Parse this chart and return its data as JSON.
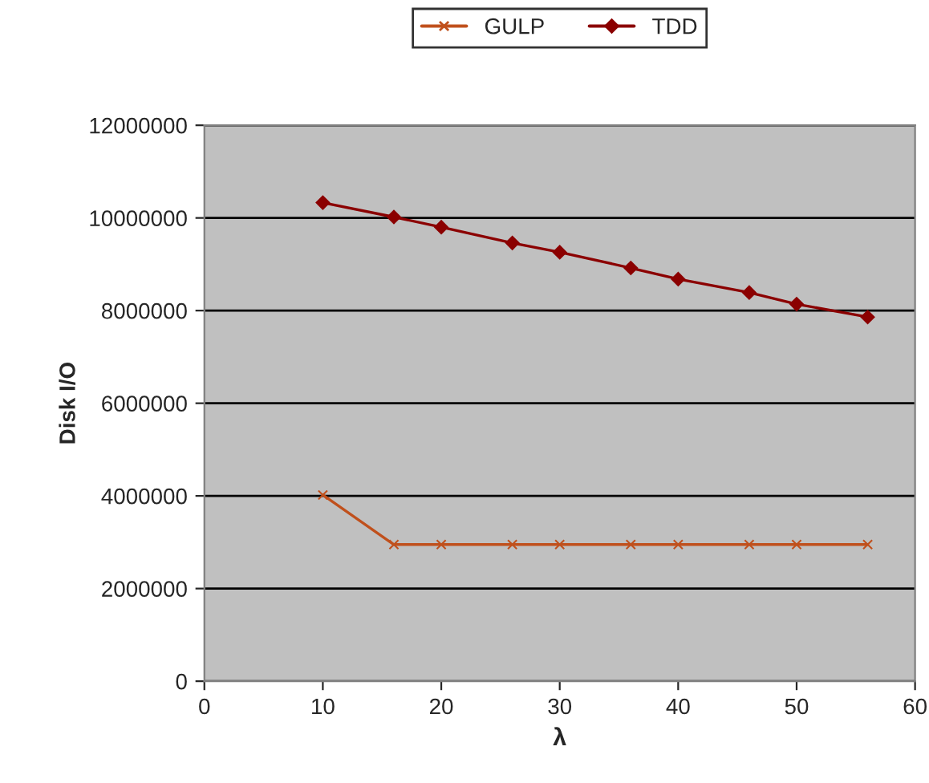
{
  "chart_data": {
    "type": "line",
    "xlabel": "λ",
    "ylabel": "Disk I/O",
    "x": [
      10,
      16,
      20,
      26,
      30,
      36,
      40,
      46,
      50,
      56
    ],
    "series": [
      {
        "name": "GULP",
        "color": "#c0501c",
        "marker": "cross",
        "values": [
          4020000,
          2950000,
          2950000,
          2950000,
          2950000,
          2950000,
          2950000,
          2950000,
          2950000,
          2950000
        ]
      },
      {
        "name": "TDD",
        "color": "#8b0000",
        "marker": "diamond",
        "values": [
          10330000,
          10020000,
          9800000,
          9460000,
          9260000,
          8920000,
          8680000,
          8390000,
          8140000,
          7860000
        ]
      }
    ],
    "xlim": [
      0,
      60
    ],
    "xticks": [
      0,
      10,
      20,
      30,
      40,
      50,
      60
    ],
    "ylim": [
      0,
      12000000
    ],
    "yticks": [
      0,
      2000000,
      4000000,
      6000000,
      8000000,
      10000000,
      12000000
    ],
    "grid": "y",
    "legend": "top",
    "line_style": "solid"
  }
}
